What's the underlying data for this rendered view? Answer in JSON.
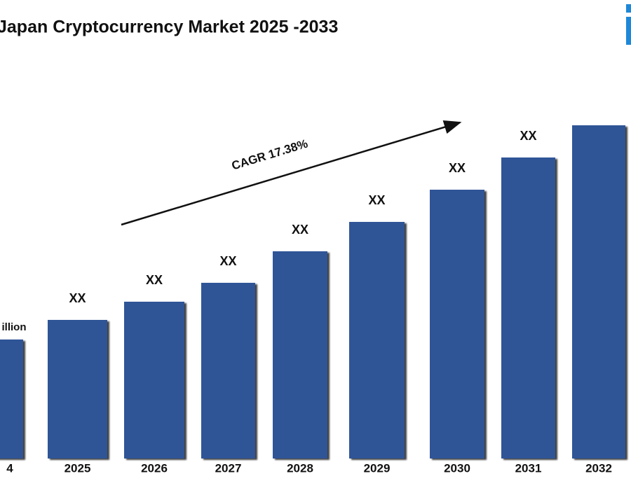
{
  "chart_data": {
    "type": "bar",
    "title": "Japan Cryptocurrency Market  2025 -2033",
    "annotation": "CAGR 17.38%",
    "categories": [
      "4",
      "2025",
      "2026",
      "2027",
      "2028",
      "2029",
      "2030",
      "2031",
      "2032"
    ],
    "values": [
      170,
      198,
      224,
      251,
      296,
      338,
      384,
      430,
      476
    ],
    "value_labels": [
      "illion",
      "XX",
      "XX",
      "XX",
      "XX",
      "XX",
      "XX",
      "XX",
      null
    ],
    "color": "#2f5597"
  }
}
